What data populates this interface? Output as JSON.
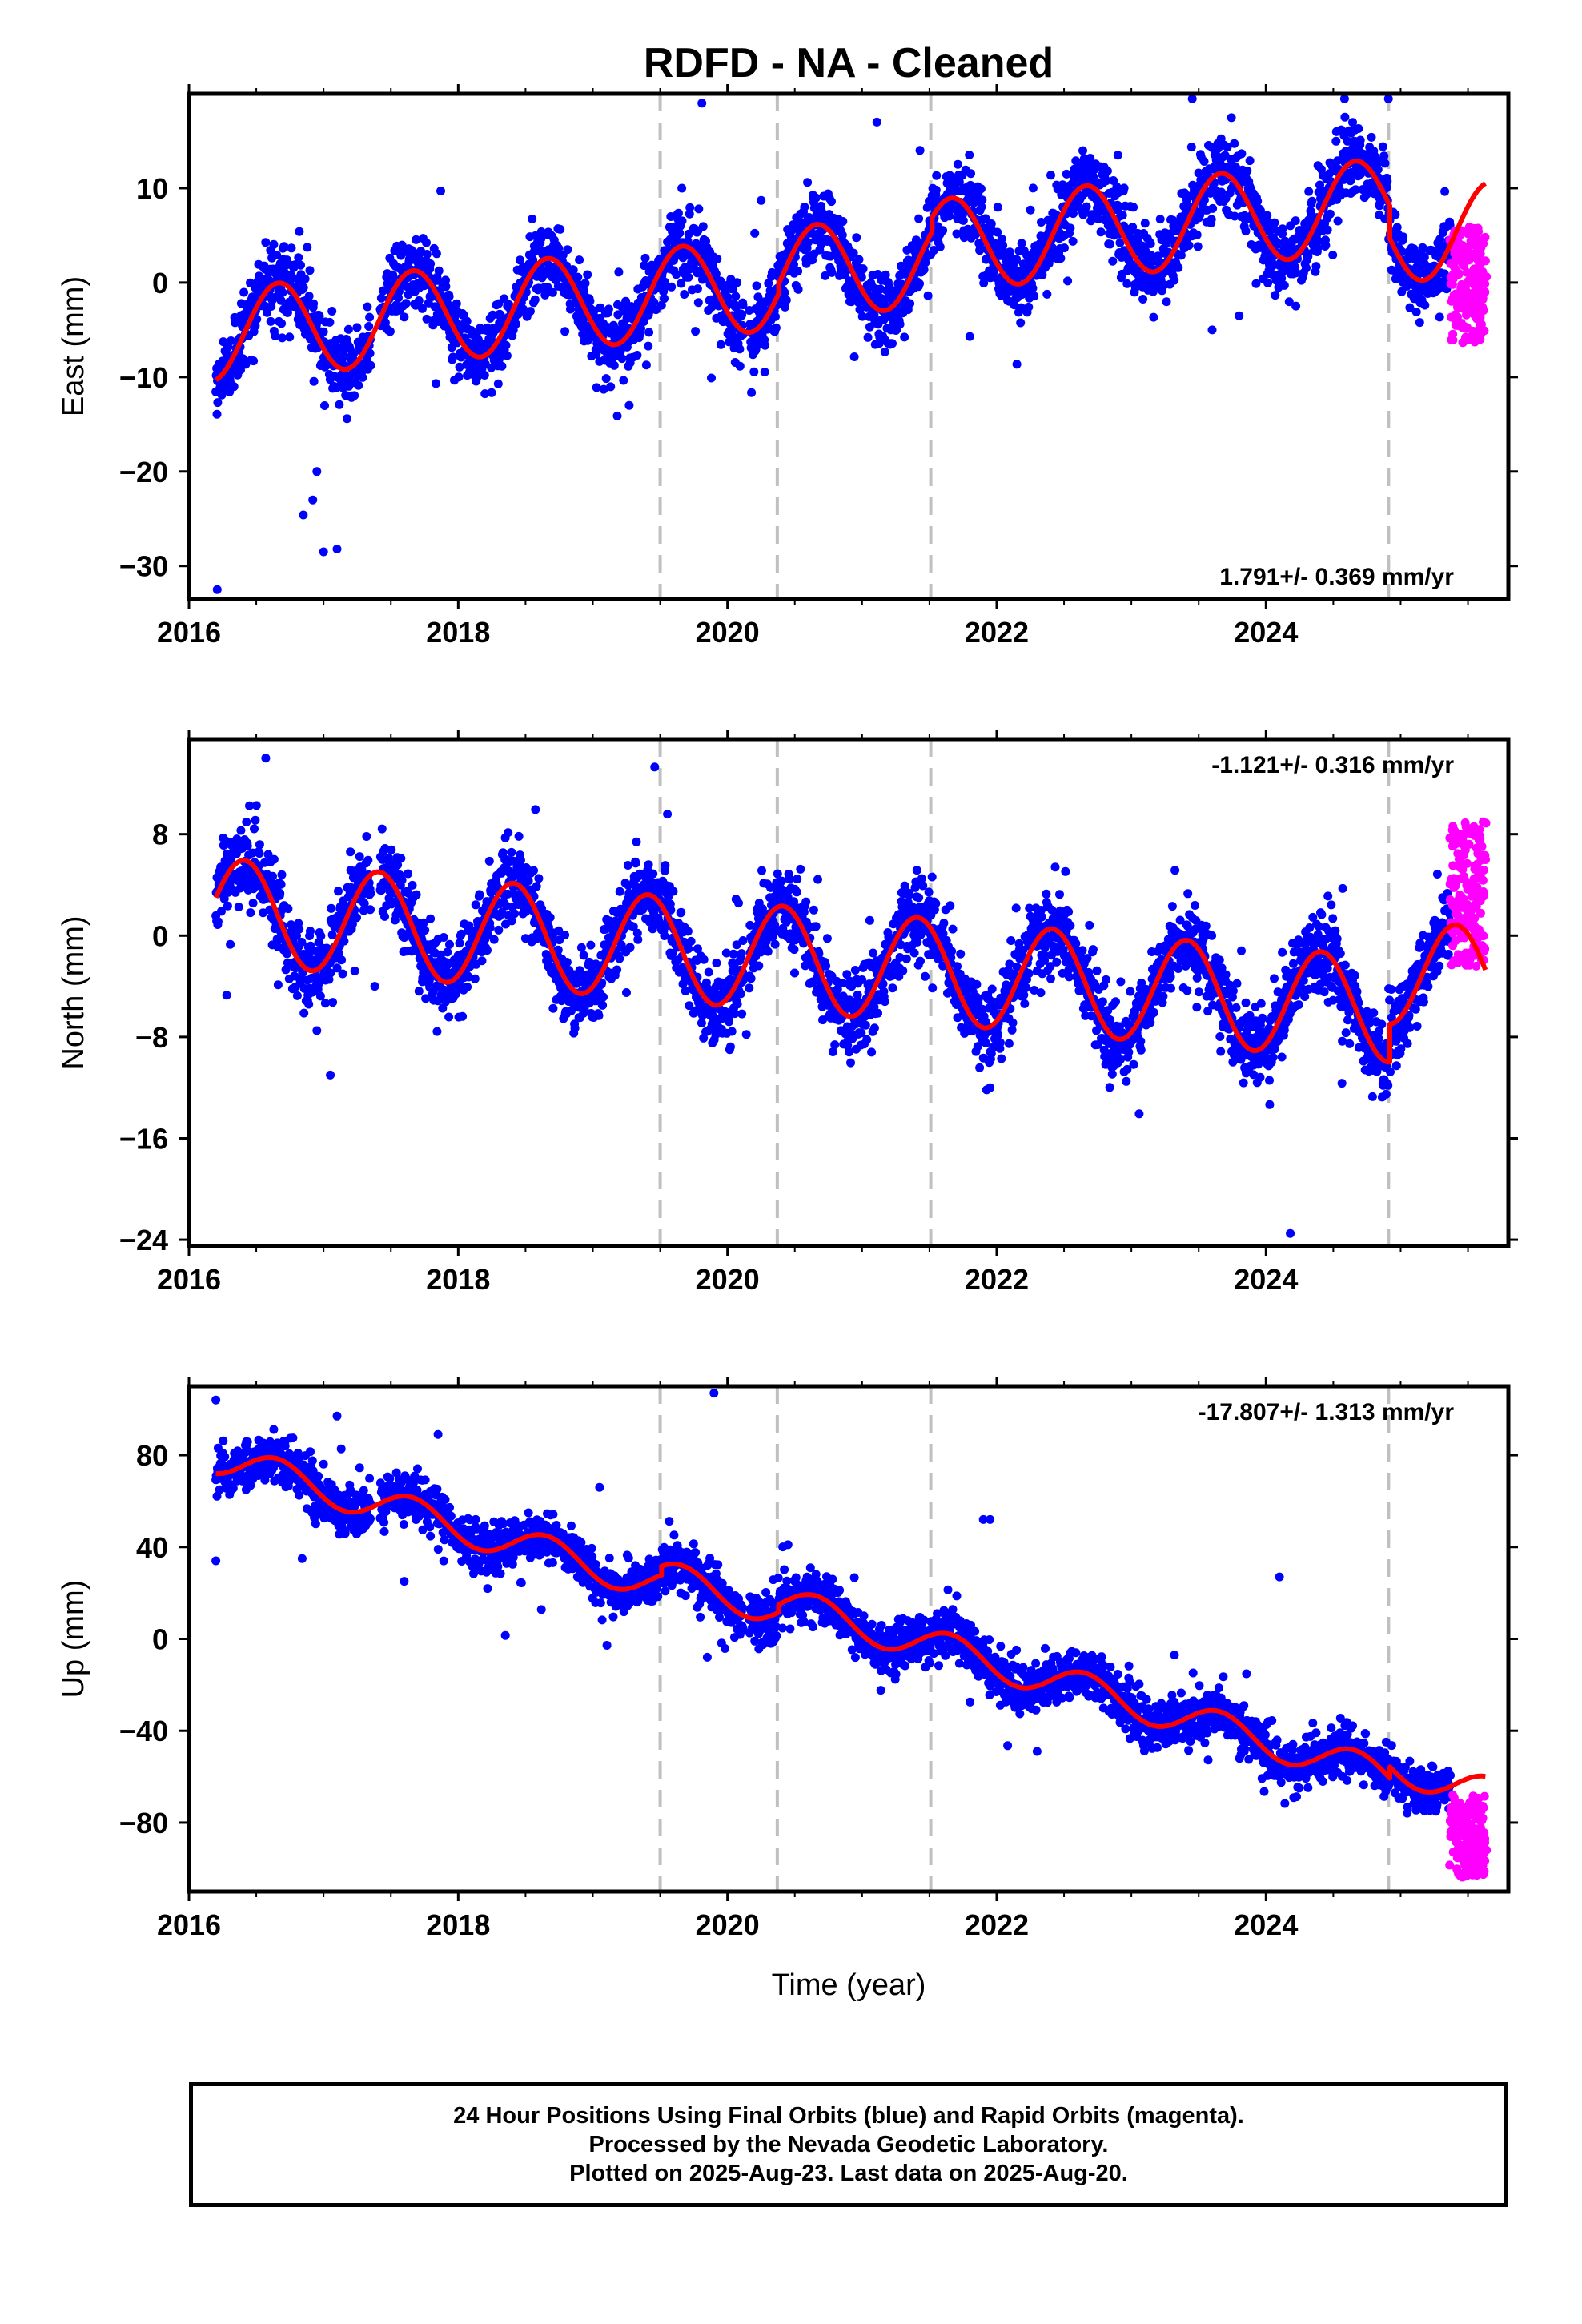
{
  "title": "RDFD  - NA - Cleaned",
  "xlabel": "Time (year)",
  "caption": [
    "24 Hour Positions Using Final Orbits (blue) and Rapid Orbits (magenta).",
    "Processed by the Nevada Geodetic Laboratory.",
    "Plotted on 2025-Aug-23. Last data on 2025-Aug-20."
  ],
  "colors": {
    "final_points": "#0000ff",
    "rapid_points": "#ff00ff",
    "model_fit": "#ff0000",
    "breaks": "#c0c0c0"
  },
  "chart_data": [
    {
      "type": "scatter",
      "component": "east",
      "ylabel": "East (mm)",
      "rate": "1.791+/- 0.369 mm/yr",
      "rate_position": "bottom-right",
      "xlim": [
        2016.0,
        2025.8
      ],
      "ylim": [
        -33.5,
        20.0
      ],
      "xticks": [
        2016,
        2018,
        2020,
        2022,
        2024
      ],
      "yticks": [
        -30,
        -20,
        -10,
        0,
        10
      ],
      "grid": false,
      "step_breaks": [
        2019.5,
        2020.37,
        2021.51,
        2024.91
      ],
      "model": {
        "start_x": 2016.2,
        "start_y": -10.3,
        "trend_mm_per_yr": 1.3,
        "annual_sin": -4.2,
        "annual_cos": -2.5,
        "offsets": {
          "2019.5": 0.0,
          "2020.37": 1.0,
          "2021.51": 1.5,
          "2024.91": -3.5
        }
      },
      "scatter_sigma": 1.9,
      "outliers": [
        [
          2016.21,
          -32.5
        ],
        [
          2016.92,
          -23.0
        ],
        [
          2017.0,
          -28.5
        ],
        [
          2017.1,
          -28.2
        ],
        [
          2016.95,
          -20.0
        ],
        [
          2016.85,
          -24.6
        ],
        [
          2016.82,
          5.4
        ],
        [
          2017.87,
          9.7
        ],
        [
          2019.88,
          -10.1
        ],
        [
          2019.81,
          19.0
        ],
        [
          2020.25,
          8.7
        ],
        [
          2021.11,
          17.0
        ],
        [
          2021.43,
          14.0
        ],
        [
          2022.9,
          13.5
        ],
        [
          2023.8,
          -3.5
        ],
        [
          2024.67,
          14.2
        ],
        [
          2019.27,
          -13.0
        ],
        [
          2021.8,
          -5.7
        ],
        [
          2023.6,
          -5.0
        ]
      ],
      "final_range": [
        2016.2,
        2025.37
      ],
      "rapid_range": [
        2025.37,
        2025.63
      ],
      "rapid_y_range": [
        -6.5,
        6.0
      ]
    },
    {
      "type": "scatter",
      "component": "north",
      "ylabel": "North (mm)",
      "rate": "-1.121+/- 0.316 mm/yr",
      "rate_position": "top-right",
      "xlim": [
        2016.0,
        2025.8
      ],
      "ylim": [
        -24.5,
        15.5
      ],
      "xticks": [
        2016,
        2018,
        2020,
        2022,
        2024
      ],
      "yticks": [
        -24,
        -16,
        -8,
        0,
        8
      ],
      "grid": false,
      "step_breaks": [
        2019.5,
        2020.37,
        2021.51,
        2024.91
      ],
      "model": {
        "start_x": 2016.2,
        "start_y": 3.0,
        "trend_mm_per_yr": -0.9,
        "annual_sin": 2.2,
        "annual_cos": -3.5,
        "offsets": {
          "2019.5": 0.0,
          "2020.37": 0.0,
          "2021.51": 0.0,
          "2024.91": 3.0
        }
      },
      "scatter_sigma": 1.5,
      "outliers": [
        [
          2016.95,
          -7.5
        ],
        [
          2017.05,
          -11.0
        ],
        [
          2016.57,
          14.0
        ],
        [
          2019.46,
          13.3
        ],
        [
          2020.14,
          -7.8
        ],
        [
          2021.07,
          -9.2
        ],
        [
          2021.95,
          -12.0
        ],
        [
          2023.91,
          -10.2
        ],
        [
          2023.78,
          -9.7
        ],
        [
          2024.18,
          -23.5
        ],
        [
          2016.28,
          -4.7
        ],
        [
          2017.38,
          -4.0
        ],
        [
          2019.25,
          -4.5
        ],
        [
          2022.98,
          -9.2
        ]
      ],
      "final_range": [
        2016.2,
        2025.37
      ],
      "rapid_range": [
        2025.37,
        2025.63
      ],
      "rapid_y_range": [
        -2.5,
        9.0
      ]
    },
    {
      "type": "scatter",
      "component": "up",
      "ylabel": "Up (mm)",
      "rate": "-17.807+/- 1.313 mm/yr",
      "rate_position": "top-right",
      "xlim": [
        2016.0,
        2025.8
      ],
      "ylim": [
        -110,
        110
      ],
      "xticks": [
        2016,
        2018,
        2020,
        2022,
        2024
      ],
      "yticks": [
        -80,
        -40,
        0,
        40,
        80
      ],
      "grid": false,
      "step_breaks": [
        2019.5,
        2020.37,
        2021.51,
        2024.91
      ],
      "model": {
        "start_x": 2016.2,
        "start_y": 72.0,
        "trend_mm_per_yr": -16.8,
        "annual_sin": -6.0,
        "annual_cos": -4.0,
        "offsets": {
          "2019.5": 4.0,
          "2020.37": 3.5,
          "2021.51": 0.0,
          "2024.91": 5.0
        }
      },
      "scatter_sigma": 5.0,
      "outliers": [
        [
          2016.2,
          104.0
        ],
        [
          2016.2,
          34.0
        ],
        [
          2017.1,
          97.0
        ],
        [
          2017.85,
          89.0
        ],
        [
          2018.35,
          1.5
        ],
        [
          2019.05,
          66.0
        ],
        [
          2019.9,
          107.0
        ],
        [
          2020.45,
          41.0
        ],
        [
          2021.9,
          52.0
        ],
        [
          2021.95,
          52.0
        ],
        [
          2023.32,
          -7.0
        ],
        [
          2024.1,
          27.0
        ],
        [
          2022.98,
          -17.0
        ],
        [
          2022.3,
          -49.0
        ],
        [
          2019.85,
          -8.0
        ]
      ],
      "final_range": [
        2016.2,
        2025.37
      ],
      "rapid_range": [
        2025.37,
        2025.63
      ],
      "rapid_y_range": [
        -104.0,
        -68.0
      ]
    }
  ]
}
